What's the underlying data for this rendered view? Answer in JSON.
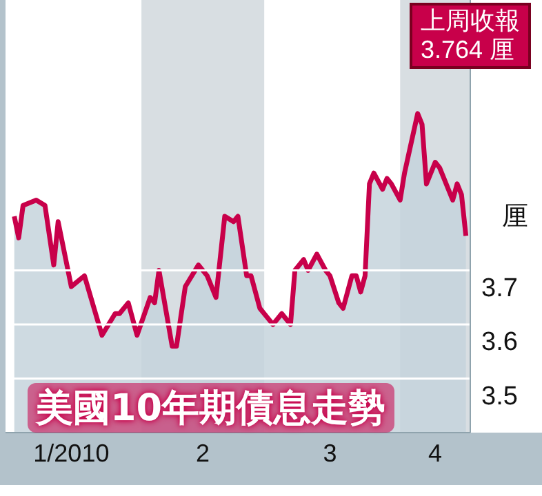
{
  "chart_data": {
    "type": "area",
    "title": "美國10年期債息走勢",
    "ylabel": "厘",
    "annotations": [
      "上周收報\n3.764 厘"
    ],
    "x": [
      "2010-01-03",
      "2010-01-04",
      "2010-01-05",
      "2010-01-08",
      "2010-01-10",
      "2010-01-12",
      "2010-01-13",
      "2010-01-16",
      "2010-01-19",
      "2010-01-23",
      "2010-01-26",
      "2010-01-27",
      "2010-01-29",
      "2010-01-31",
      "2010-02-03",
      "2010-02-04",
      "2010-02-05",
      "2010-02-08",
      "2010-02-09",
      "2010-02-11",
      "2010-02-14",
      "2010-02-16",
      "2010-02-18",
      "2010-02-20",
      "2010-02-22",
      "2010-02-23",
      "2010-02-25",
      "2010-02-26",
      "2010-02-28",
      "2010-03-02",
      "2010-03-03",
      "2010-03-05",
      "2010-03-07",
      "2010-03-08",
      "2010-03-10",
      "2010-03-11",
      "2010-03-13",
      "2010-03-15",
      "2010-03-16",
      "2010-03-18",
      "2010-03-19",
      "2010-03-21",
      "2010-03-22",
      "2010-03-23",
      "2010-03-24",
      "2010-03-25",
      "2010-03-26",
      "2010-03-28",
      "2010-03-29",
      "2010-03-30",
      "2010-04-01",
      "2010-04-02",
      "2010-04-05",
      "2010-04-06",
      "2010-04-07",
      "2010-04-09",
      "2010-04-10",
      "2010-04-13",
      "2010-04-14",
      "2010-04-15",
      "2010-04-16"
    ],
    "series": [
      {
        "color": "#c8004a",
        "values": [
          3.8,
          3.76,
          3.82,
          3.83,
          3.82,
          3.71,
          3.79,
          3.67,
          3.69,
          3.58,
          3.62,
          3.62,
          3.64,
          3.58,
          3.65,
          3.64,
          3.7,
          3.56,
          3.56,
          3.67,
          3.71,
          3.69,
          3.65,
          3.8,
          3.79,
          3.8,
          3.69,
          3.69,
          3.63,
          3.61,
          3.6,
          3.62,
          3.6,
          3.7,
          3.72,
          3.7,
          3.73,
          3.7,
          3.69,
          3.64,
          3.63,
          3.69,
          3.69,
          3.66,
          3.69,
          3.86,
          3.88,
          3.85,
          3.87,
          3.86,
          3.83,
          3.88,
          3.99,
          3.97,
          3.86,
          3.9,
          3.89,
          3.83,
          3.86,
          3.84,
          3.764
        ]
      }
    ],
    "xlim": [
      "2010-01-01",
      "2010-04-17"
    ],
    "xticks": [
      {
        "value": "2010-01-16",
        "label": "1/2010"
      },
      {
        "value": "2010-02-15",
        "label": "2"
      },
      {
        "value": "2010-03-16",
        "label": "3"
      },
      {
        "value": "2010-04-09",
        "label": "4"
      }
    ],
    "ylim": [
      3.4,
      4.2
    ],
    "yticks": [
      3.5,
      3.6,
      3.7
    ],
    "grid": "y",
    "bands": [
      {
        "axis": "x",
        "from": "2010-02-01",
        "to": "2010-03-01",
        "color": "#7f939e"
      },
      {
        "axis": "x",
        "from": "2010-04-01",
        "to": "2010-04-17",
        "color": "#7f939e"
      }
    ]
  }
}
